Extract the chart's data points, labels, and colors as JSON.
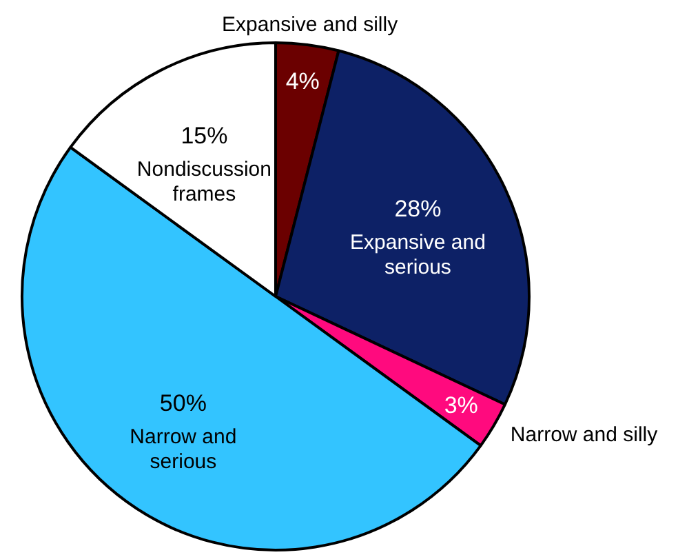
{
  "chart_data": {
    "type": "pie",
    "categories": [
      "Expansive and silly",
      "Expansive and serious",
      "Narrow and silly",
      "Narrow and serious",
      "Nondiscussion frames"
    ],
    "values": [
      4,
      28,
      3,
      50,
      15
    ],
    "colors": [
      "#6b0000",
      "#0d2166",
      "#ff0a7e",
      "#33c4ff",
      "#ffffff"
    ],
    "value_labels": [
      "4%",
      "28%",
      "3%",
      "50%",
      "15%"
    ],
    "legend": false
  }
}
